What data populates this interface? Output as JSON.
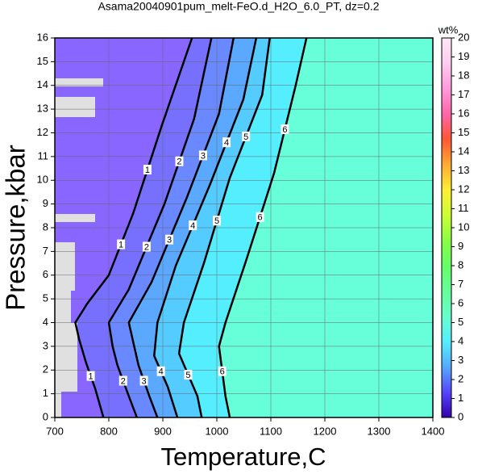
{
  "chart_data": {
    "type": "contour",
    "title": "Asama20040901pum_melt-FeO.d_H2O_6.0_PT, dz=0.2",
    "x_label": "Temperature,C",
    "y_label": "Pressure,kbar",
    "xlim": [
      700,
      1400
    ],
    "xticks": [
      700,
      800,
      900,
      1000,
      1100,
      1200,
      1300,
      1400
    ],
    "ylim": [
      0,
      16
    ],
    "yticks": [
      0,
      1,
      2,
      3,
      4,
      5,
      6,
      7,
      8,
      9,
      10,
      11,
      12,
      13,
      14,
      15,
      16
    ],
    "grid": true,
    "background": "#66ffd9",
    "series": [
      {
        "name": "1",
        "color": "#000000",
        "fill": "#8866ff",
        "x": [
          954,
          898,
          845,
          800,
          760,
          738,
          745,
          758,
          775,
          790
        ],
        "values": [
          16,
          12.3,
          8.6,
          6,
          4.8,
          4.0,
          3.3,
          2.3,
          1.2,
          0
        ]
      },
      {
        "name": "2",
        "color": "#000000",
        "fill": "#7770ff",
        "x": [
          990,
          958,
          903,
          837,
          800,
          807,
          816,
          837,
          852
        ],
        "values": [
          16,
          12.6,
          9.0,
          5.4,
          4.0,
          3.0,
          2.2,
          0.9,
          0
        ]
      },
      {
        "name": "3",
        "color": "#000000",
        "fill": "#6a88ff",
        "x": [
          1031,
          1004,
          945,
          879,
          837,
          855,
          875,
          890
        ],
        "values": [
          16,
          12.8,
          9.3,
          5.7,
          4.0,
          2.2,
          0.9,
          0
        ]
      },
      {
        "name": "4",
        "color": "#000000",
        "fill": "#5aa8ff",
        "x": [
          1073,
          1049,
          987,
          924,
          890,
          884,
          909,
          927
        ],
        "values": [
          16,
          13.4,
          9.8,
          6.4,
          4.0,
          2.6,
          1.3,
          0
        ]
      },
      {
        "name": "5",
        "color": "#000000",
        "fill": "#55ccff",
        "x": [
          1098,
          1084,
          1024,
          976,
          939,
          930,
          964,
          972
        ],
        "values": [
          16,
          13.6,
          10.1,
          6.5,
          4.0,
          2.7,
          0.9,
          0
        ]
      },
      {
        "name": "6",
        "color": "#000000",
        "fill": "#55eeff",
        "x": [
          1166,
          1146,
          1106,
          1054,
          1016,
          1004,
          1016,
          1024
        ],
        "values": [
          16,
          14.0,
          10.3,
          6.6,
          4.0,
          3.0,
          0.9,
          0
        ]
      }
    ],
    "colorbar": {
      "label": "wt%",
      "lim": [
        0,
        20
      ],
      "ticks": [
        0,
        1,
        2,
        3,
        4,
        5,
        6,
        7,
        8,
        9,
        10,
        11,
        12,
        13,
        14,
        15,
        16,
        17,
        18,
        19,
        20
      ],
      "colors": [
        "#3300aa",
        "#5544ff",
        "#55aaff",
        "#55eeff",
        "#66ffcc",
        "#66ff99",
        "#66ff66",
        "#88ff44",
        "#ccff33",
        "#ffee33",
        "#ffaa33",
        "#ff5533",
        "#ff66aa",
        "#ff99dd",
        "#ffccee",
        "#ffe6f5"
      ]
    }
  }
}
